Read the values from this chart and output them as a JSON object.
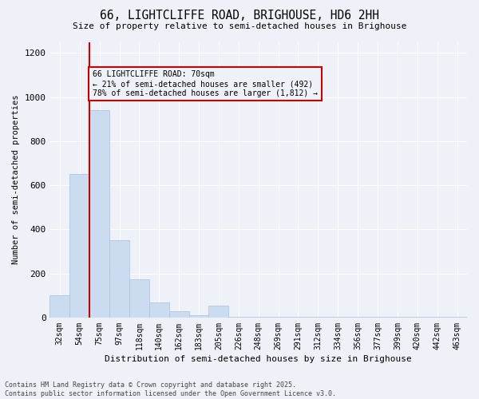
{
  "title1": "66, LIGHTCLIFFE ROAD, BRIGHOUSE, HD6 2HH",
  "title2": "Size of property relative to semi-detached houses in Brighouse",
  "xlabel": "Distribution of semi-detached houses by size in Brighouse",
  "ylabel": "Number of semi-detached properties",
  "categories": [
    "32sqm",
    "54sqm",
    "75sqm",
    "97sqm",
    "118sqm",
    "140sqm",
    "162sqm",
    "183sqm",
    "205sqm",
    "226sqm",
    "248sqm",
    "269sqm",
    "291sqm",
    "312sqm",
    "334sqm",
    "356sqm",
    "377sqm",
    "399sqm",
    "420sqm",
    "442sqm",
    "463sqm"
  ],
  "values": [
    100,
    650,
    940,
    350,
    175,
    70,
    30,
    10,
    55,
    5,
    5,
    5,
    5,
    5,
    5,
    5,
    5,
    5,
    5,
    5,
    5
  ],
  "bar_color": "#ccdcf0",
  "bar_edge_color": "#a8c0de",
  "vline_x": 1.5,
  "vline_color": "#cc0000",
  "annotation_title": "66 LIGHTCLIFFE ROAD: 70sqm",
  "annotation_line1": "← 21% of semi-detached houses are smaller (492)",
  "annotation_line2": "78% of semi-detached houses are larger (1,812) →",
  "annotation_box_color": "#cc0000",
  "ylim": [
    0,
    1250
  ],
  "yticks": [
    0,
    200,
    400,
    600,
    800,
    1000,
    1200
  ],
  "footer1": "Contains HM Land Registry data © Crown copyright and database right 2025.",
  "footer2": "Contains public sector information licensed under the Open Government Licence v3.0.",
  "bg_color": "#eef2f8"
}
